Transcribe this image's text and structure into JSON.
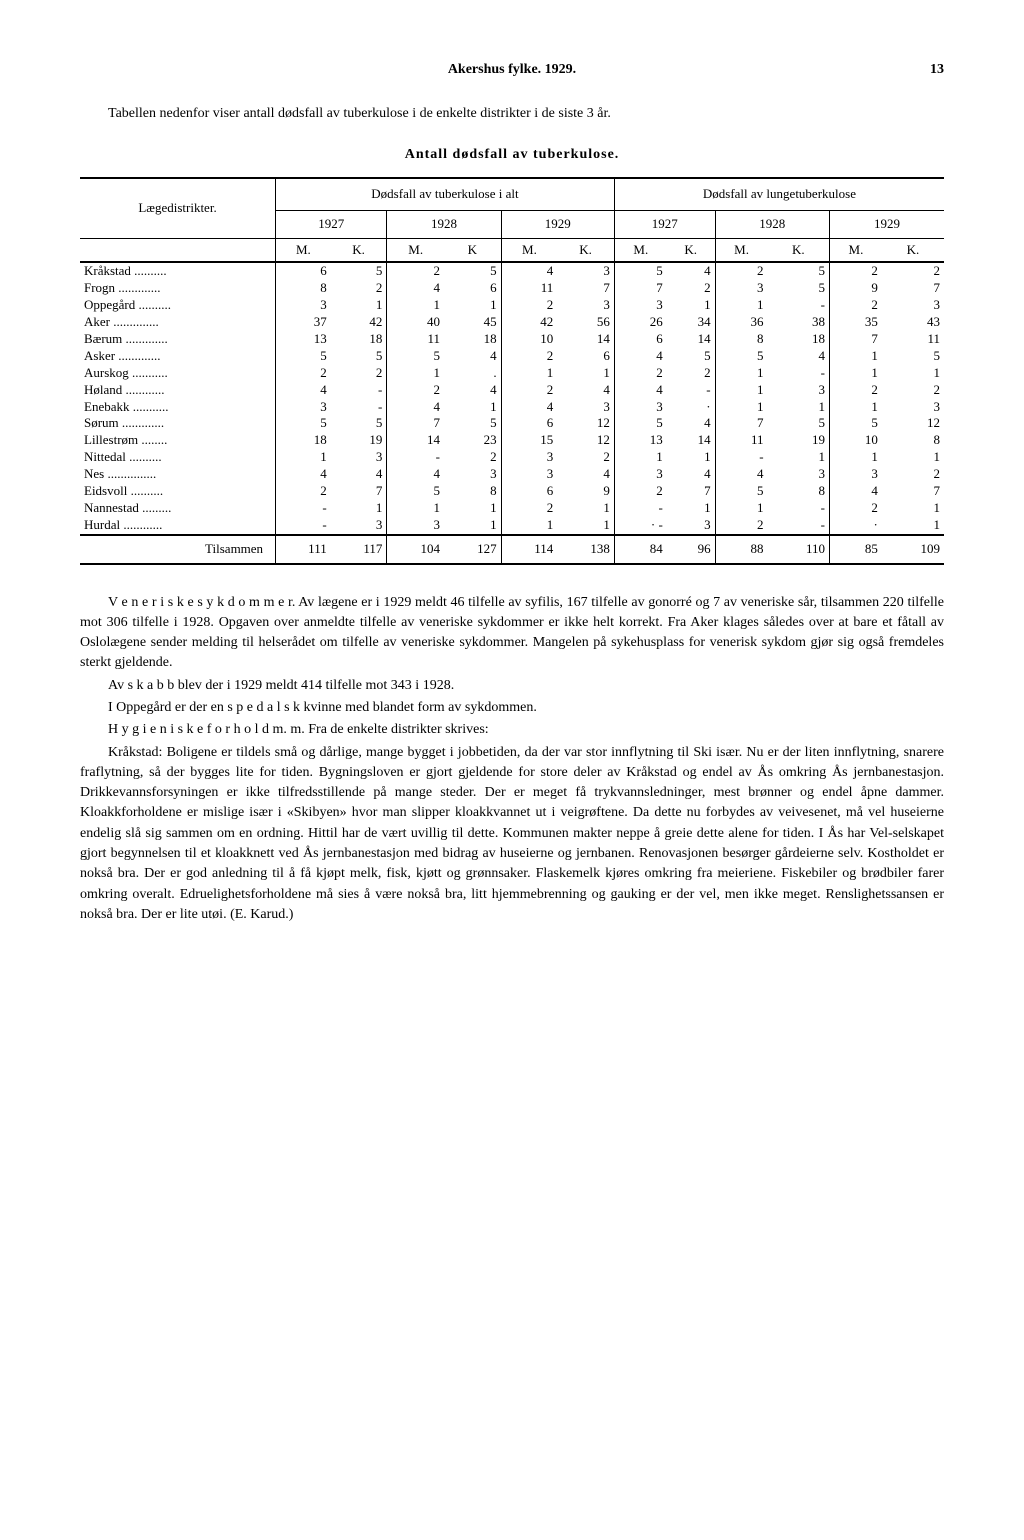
{
  "header": {
    "title": "Akershus fylke. 1929.",
    "page_number": "13"
  },
  "intro": "Tabellen nedenfor viser antall dødsfall av tuberkulose i de enkelte distrikter i de siste 3 år.",
  "table": {
    "title": "Antall dødsfall av tuberkulose.",
    "group_headers": [
      "Dødsfall av tuberkulose i alt",
      "Dødsfall av lungetuberkulose"
    ],
    "row_header_label": "Lægedistrikter.",
    "years": [
      "1927",
      "1928",
      "1929",
      "1927",
      "1928",
      "1929"
    ],
    "mk": [
      "M.",
      "K.",
      "M.",
      "K",
      "M.",
      "K.",
      "M.",
      "K.",
      "M.",
      "K.",
      "M.",
      "K."
    ],
    "rows": [
      {
        "label": "Kråkstad",
        "vals": [
          "6",
          "5",
          "2",
          "5",
          "4",
          "3",
          "5",
          "4",
          "2",
          "5",
          "2",
          "2"
        ]
      },
      {
        "label": "Frogn",
        "vals": [
          "8",
          "2",
          "4",
          "6",
          "11",
          "7",
          "7",
          "2",
          "3",
          "5",
          "9",
          "7"
        ]
      },
      {
        "label": "Oppegård",
        "vals": [
          "3",
          "1",
          "1",
          "1",
          "2",
          "3",
          "3",
          "1",
          "1",
          "-",
          "2",
          "3"
        ]
      },
      {
        "label": "Aker",
        "vals": [
          "37",
          "42",
          "40",
          "45",
          "42",
          "56",
          "26",
          "34",
          "36",
          "38",
          "35",
          "43"
        ]
      },
      {
        "label": "Bærum",
        "vals": [
          "13",
          "18",
          "11",
          "18",
          "10",
          "14",
          "6",
          "14",
          "8",
          "18",
          "7",
          "11"
        ]
      },
      {
        "label": "Asker",
        "vals": [
          "5",
          "5",
          "5",
          "4",
          "2",
          "6",
          "4",
          "5",
          "5",
          "4",
          "1",
          "5"
        ]
      },
      {
        "label": "Aurskog",
        "vals": [
          "2",
          "2",
          "1",
          ".",
          "1",
          "1",
          "2",
          "2",
          "1",
          "-",
          "1",
          "1"
        ]
      },
      {
        "label": "Høland",
        "vals": [
          "4",
          "-",
          "2",
          "4",
          "2",
          "4",
          "4",
          "-",
          "1",
          "3",
          "2",
          "2"
        ]
      },
      {
        "label": "Enebakk",
        "vals": [
          "3",
          "-",
          "4",
          "1",
          "4",
          "3",
          "3",
          "·",
          "1",
          "1",
          "1",
          "3"
        ]
      },
      {
        "label": "Sørum",
        "vals": [
          "5",
          "5",
          "7",
          "5",
          "6",
          "12",
          "5",
          "4",
          "7",
          "5",
          "5",
          "12"
        ]
      },
      {
        "label": "Lillestrøm",
        "vals": [
          "18",
          "19",
          "14",
          "23",
          "15",
          "12",
          "13",
          "14",
          "11",
          "19",
          "10",
          "8"
        ]
      },
      {
        "label": "Nittedal",
        "vals": [
          "1",
          "3",
          "-",
          "2",
          "3",
          "2",
          "1",
          "1",
          "-",
          "1",
          "1",
          "1"
        ]
      },
      {
        "label": "Nes",
        "vals": [
          "4",
          "4",
          "4",
          "3",
          "3",
          "4",
          "3",
          "4",
          "4",
          "3",
          "3",
          "2"
        ]
      },
      {
        "label": "Eidsvoll",
        "vals": [
          "2",
          "7",
          "5",
          "8",
          "6",
          "9",
          "2",
          "7",
          "5",
          "8",
          "4",
          "7"
        ]
      },
      {
        "label": "Nannestad",
        "vals": [
          "-",
          "1",
          "1",
          "1",
          "2",
          "1",
          "-",
          "1",
          "1",
          "-",
          "2",
          "1"
        ]
      },
      {
        "label": "Hurdal",
        "vals": [
          "-",
          "3",
          "3",
          "1",
          "1",
          "1",
          "· -",
          "3",
          "2",
          "-",
          "·",
          "1"
        ]
      }
    ],
    "total": {
      "label": "Tilsammen",
      "vals": [
        "111",
        "117",
        "104",
        "127",
        "114",
        "138",
        "84",
        "96",
        "88",
        "110",
        "85",
        "109"
      ]
    }
  },
  "body": {
    "p1a": "V e n e r i s k e  s y k d o m m e r.",
    "p1b": " Av lægene er i 1929 meldt 46 tilfelle av syfilis, 167 tilfelle av gonorré og 7 av veneriske sår, tilsammen 220 tilfelle mot 306 tilfelle i 1928. Opgaven over anmeldte tilfelle av veneriske sykdommer er ikke helt korrekt. Fra Aker klages således over at bare et fåtall av Oslolægene sender melding til helserådet om tilfelle av veneriske sykdommer. Mangelen på sykehusplass for venerisk sykdom gjør sig også fremdeles sterkt gjeldende.",
    "p2": "Av s k a b b blev der i 1929 meldt 414 tilfelle mot 343 i 1928.",
    "p3": "I Oppegård er der en s p e d a l s k kvinne med blandet form av sykdommen.",
    "p4": "H y g i e n i s k e  f o r h o l d  m. m. Fra de enkelte distrikter skrives:",
    "p5": "Kråkstad: Boligene er tildels små og dårlige, mange bygget i jobbetiden, da der var stor innflytning til Ski især. Nu er der liten innflytning, snarere fraflytning, så der bygges lite for tiden. Bygningsloven er gjort gjeldende for store deler av Kråkstad og endel av Ås omkring Ås jernbanestasjon. Drikkevannsforsyningen er ikke tilfredsstillende på mange steder. Der er meget få trykvannsledninger, mest brønner og endel åpne dammer. Kloakkforholdene er mislige især i «Skibyen» hvor man slipper kloakkvannet ut i veigrøftene. Da dette nu forbydes av veivesenet, må vel huseierne endelig slå sig sammen om en ordning. Hittil har de vært uvillig til dette. Kommunen makter neppe å greie dette alene for tiden. I Ås har Vel-selskapet gjort begynnelsen til et kloakknett ved Ås jernbanestasjon med bidrag av huseierne og jernbanen. Renovasjonen besørger gårdeierne selv. Kostholdet er nokså bra. Der er god anledning til å få kjøpt melk, fisk, kjøtt og grønnsaker. Flaskemelk kjøres omkring fra meieriene. Fiskebiler og brødbiler farer omkring overalt. Edruelighetsforholdene må sies å være nokså bra, litt hjemmebrenning og gauking er der vel, men ikke meget. Renslighetssansen er nokså bra. Der er lite utøi. (E. Karud.)"
  }
}
